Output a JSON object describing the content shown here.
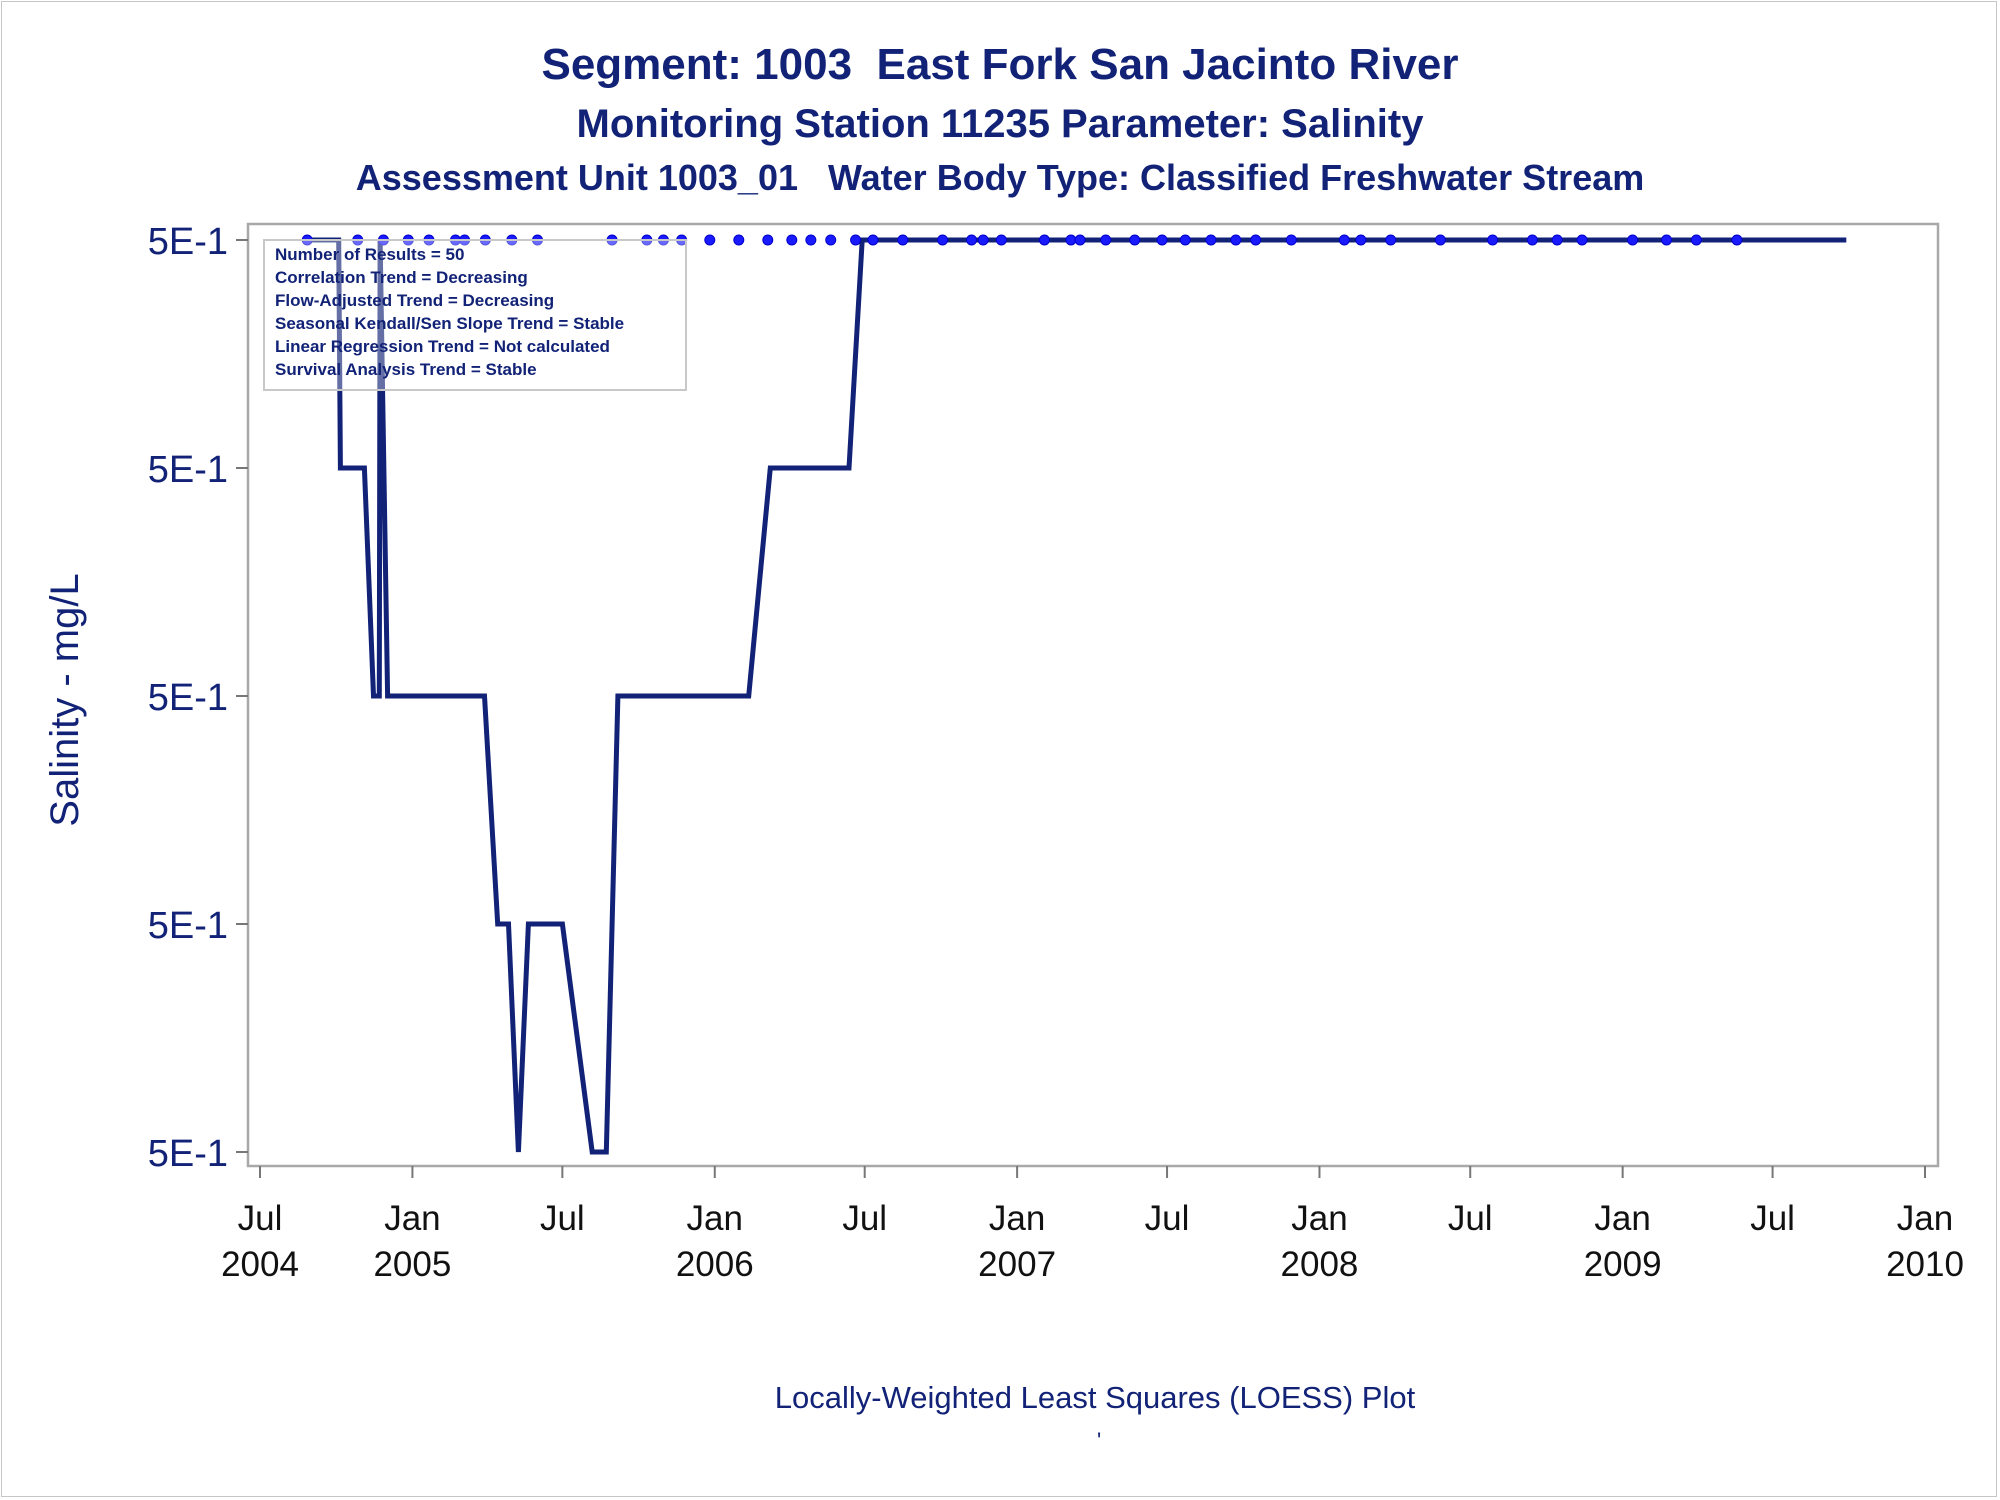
{
  "chart_data": {
    "type": "line",
    "title": "Segment: 1003  East Fork San Jacinto River",
    "subtitle": "Monitoring Station 11235 Parameter: Salinity",
    "subtitle2": "Assessment Unit 1003_01   Water Body Type: Classified Freshwater Stream",
    "ylabel": "Salinity - mg/L",
    "xlabel": "",
    "footnote": "Locally-Weighted Least Squares (LOESS) Plot",
    "footnote_mark": "'",
    "xlim": [
      "2004-07-01",
      "2010-01-01"
    ],
    "ylim_levels": [
      0,
      4
    ],
    "yticks": [
      {
        "level": 4,
        "label": "5E-1"
      },
      {
        "level": 3,
        "label": "5E-1"
      },
      {
        "level": 2,
        "label": "5E-1"
      },
      {
        "level": 1,
        "label": "5E-1"
      },
      {
        "level": 0,
        "label": "5E-1"
      }
    ],
    "xticks": [
      {
        "date": "2004-07-01",
        "line1": "Jul",
        "line2": "2004"
      },
      {
        "date": "2005-01-01",
        "line1": "Jan",
        "line2": "2005"
      },
      {
        "date": "2005-07-01",
        "line1": "Jul",
        "line2": ""
      },
      {
        "date": "2006-01-01",
        "line1": "Jan",
        "line2": "2006"
      },
      {
        "date": "2006-07-01",
        "line1": "Jul",
        "line2": ""
      },
      {
        "date": "2007-01-01",
        "line1": "Jan",
        "line2": "2007"
      },
      {
        "date": "2007-07-01",
        "line1": "Jul",
        "line2": ""
      },
      {
        "date": "2008-01-01",
        "line1": "Jan",
        "line2": "2008"
      },
      {
        "date": "2008-07-01",
        "line1": "Jul",
        "line2": ""
      },
      {
        "date": "2009-01-01",
        "line1": "Jan",
        "line2": "2009"
      },
      {
        "date": "2009-07-01",
        "line1": "Jul",
        "line2": ""
      },
      {
        "date": "2010-01-01",
        "line1": "Jan",
        "line2": "2010"
      }
    ],
    "grid": false,
    "legend_box": {
      "placement": "top-left",
      "lines": [
        "Number of Results = 50",
        "Correlation Trend = Decreasing",
        "Flow-Adjusted Trend = Decreasing",
        "Seasonal Kendall/Sen Slope Trend = Stable",
        "Linear Regression Trend = Not calculated",
        "Survival Analysis Trend = Stable"
      ]
    },
    "series": [
      {
        "kind": "points",
        "color": "#1a1aff",
        "x": [
          "2004-08-27",
          "2004-10-27",
          "2004-11-27",
          "2004-12-27",
          "2005-01-21",
          "2005-02-22",
          "2005-03-05",
          "2005-03-30",
          "2005-05-01",
          "2005-06-01",
          "2005-08-30",
          "2005-10-11",
          "2005-10-31",
          "2005-11-22",
          "2005-12-26",
          "2006-01-30",
          "2006-03-06",
          "2006-04-04",
          "2006-04-27",
          "2006-05-21",
          "2006-06-20",
          "2006-07-11",
          "2006-08-16",
          "2006-10-03",
          "2006-11-07",
          "2006-11-21",
          "2006-12-13",
          "2007-02-03",
          "2007-03-07",
          "2007-03-18",
          "2007-04-18",
          "2007-05-23",
          "2007-06-25",
          "2007-07-23",
          "2007-08-23",
          "2007-09-22",
          "2007-10-16",
          "2007-11-28",
          "2008-01-31",
          "2008-02-20",
          "2008-03-27",
          "2008-05-26",
          "2008-07-28",
          "2008-09-14",
          "2008-10-14",
          "2008-11-13",
          "2009-01-13",
          "2009-02-23",
          "2009-03-31",
          "2009-05-19"
        ],
        "y_level": [
          4,
          4,
          4,
          4,
          4,
          4,
          4,
          4,
          4,
          4,
          4,
          4,
          4,
          4,
          4,
          4,
          4,
          4,
          4,
          4,
          4,
          4,
          4,
          4,
          4,
          4,
          4,
          4,
          4,
          4,
          4,
          4,
          4,
          4,
          4,
          4,
          4,
          4,
          4,
          4,
          4,
          4,
          4,
          4,
          4,
          4,
          4,
          4,
          4,
          4
        ]
      },
      {
        "kind": "line",
        "color": "#112277",
        "x": [
          "2004-08-27",
          "2004-10-04",
          "2004-10-06",
          "2004-11-04",
          "2004-11-15",
          "2004-11-22",
          "2004-11-23",
          "2004-12-02",
          "2005-03-29",
          "2005-04-14",
          "2005-04-27",
          "2005-05-09",
          "2005-05-21",
          "2005-06-01",
          "2005-07-01",
          "2005-08-06",
          "2005-08-23",
          "2005-09-06",
          "2006-02-11",
          "2006-03-09",
          "2006-06-12",
          "2006-06-28",
          "2009-09-28"
        ],
        "y_level": [
          4,
          4,
          3,
          3,
          2,
          2,
          4,
          2,
          2,
          1,
          1,
          0,
          1,
          1,
          1,
          0,
          0,
          2,
          2,
          3,
          3,
          4,
          4
        ]
      }
    ]
  }
}
